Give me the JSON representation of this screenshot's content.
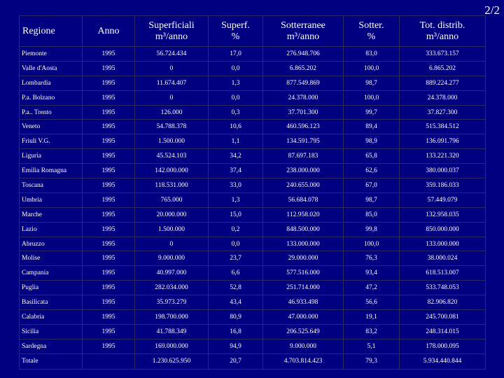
{
  "page": {
    "number": "2/2"
  },
  "table": {
    "headers": [
      {
        "line1": "Regione",
        "line2": ""
      },
      {
        "line1": "Anno",
        "line2": ""
      },
      {
        "line1": "Superficiali",
        "line2": "m³/anno"
      },
      {
        "line1": "Superf.",
        "line2": "%"
      },
      {
        "line1": "Sotterranee",
        "line2": "m³/anno"
      },
      {
        "line1": "Sotter.",
        "line2": "%"
      },
      {
        "line1": "Tot. distrib.",
        "line2": "m³/anno"
      }
    ],
    "rows": [
      [
        "Piemonte",
        "1995",
        "56.724.434",
        "17,0",
        "276.948.706",
        "83,0",
        "333.673.157"
      ],
      [
        "Valle d'Aosta",
        "1995",
        "0",
        "0,0",
        "6.865.202",
        "100,0",
        "6.865.202"
      ],
      [
        "Lombardia",
        "1995",
        "11.674.407",
        "1,3",
        "877.549.869",
        "98,7",
        "889.224.277"
      ],
      [
        "P.a. Bolzano",
        "1995",
        "0",
        "0,0",
        "24.378.000",
        "100,0",
        "24.378.000"
      ],
      [
        "P.a.. Trento",
        "1995",
        "126.000",
        "0,3",
        "37.701.300",
        "99,7",
        "37.827.300"
      ],
      [
        "Veneto",
        "1995",
        "54.788.378",
        "10,6",
        "460.596.123",
        "89,4",
        "515.384.512"
      ],
      [
        "Friuli V.G.",
        "1995",
        "1.500.000",
        "1,1",
        "134.591.795",
        "98,9",
        "136.091.796"
      ],
      [
        "Liguria",
        "1995",
        "45.524.103",
        "34,2",
        "87.697.183",
        "65,8",
        "133.221.320"
      ],
      [
        "Emilia Romagna",
        "1995",
        "142.000.000",
        "37,4",
        "238.000.000",
        "62,6",
        "380.000.037"
      ],
      [
        "Toscana",
        "1995",
        "118.531.000",
        "33,0",
        "240.655.000",
        "67,0",
        "359.186.033"
      ],
      [
        "Umbria",
        "1995",
        "765.000",
        "1,3",
        "56.684.078",
        "98,7",
        "57.449.079"
      ],
      [
        "Marche",
        "1995",
        "20.000.000",
        "15,0",
        "112.958.020",
        "85,0",
        "132.958.035"
      ],
      [
        "Lazio",
        "1995",
        "1.500.000",
        "0,2",
        "848.500.000",
        "99,8",
        "850.000.000"
      ],
      [
        "Abruzzo",
        "1995",
        "0",
        "0,0",
        "133.000.000",
        "100,0",
        "133.000.000"
      ],
      [
        "Molise",
        "1995",
        "9.000.000",
        "23,7",
        "29.000.000",
        "76,3",
        "38.000.024"
      ],
      [
        "Campania",
        "1995",
        "40.997.000",
        "6,6",
        "577.516.000",
        "93,4",
        "618.513.007"
      ],
      [
        "Puglia",
        "1995",
        "282.034.000",
        "52,8",
        "251.714.000",
        "47,2",
        "533.748.053"
      ],
      [
        "Basilicata",
        "1995",
        "35.973.279",
        "43,4",
        "46.933.498",
        "56,6",
        "82.906.820"
      ],
      [
        "Calabria",
        "1995",
        "198.700.000",
        "80,9",
        "47.000.000",
        "19,1",
        "245.700.081"
      ],
      [
        "Sicilia",
        "1995",
        "41.788.349",
        "16,8",
        "206.525.649",
        "83,2",
        "248.314.015"
      ],
      [
        "Sardegna",
        "1995",
        "169.000.000",
        "94,9",
        "9.000.000",
        "5,1",
        "178.000.095"
      ]
    ],
    "total": [
      "Totale",
      "",
      "1.230.625.950",
      "20,7",
      "4.703.814.423",
      "79,3",
      "5.934.440.844"
    ]
  }
}
